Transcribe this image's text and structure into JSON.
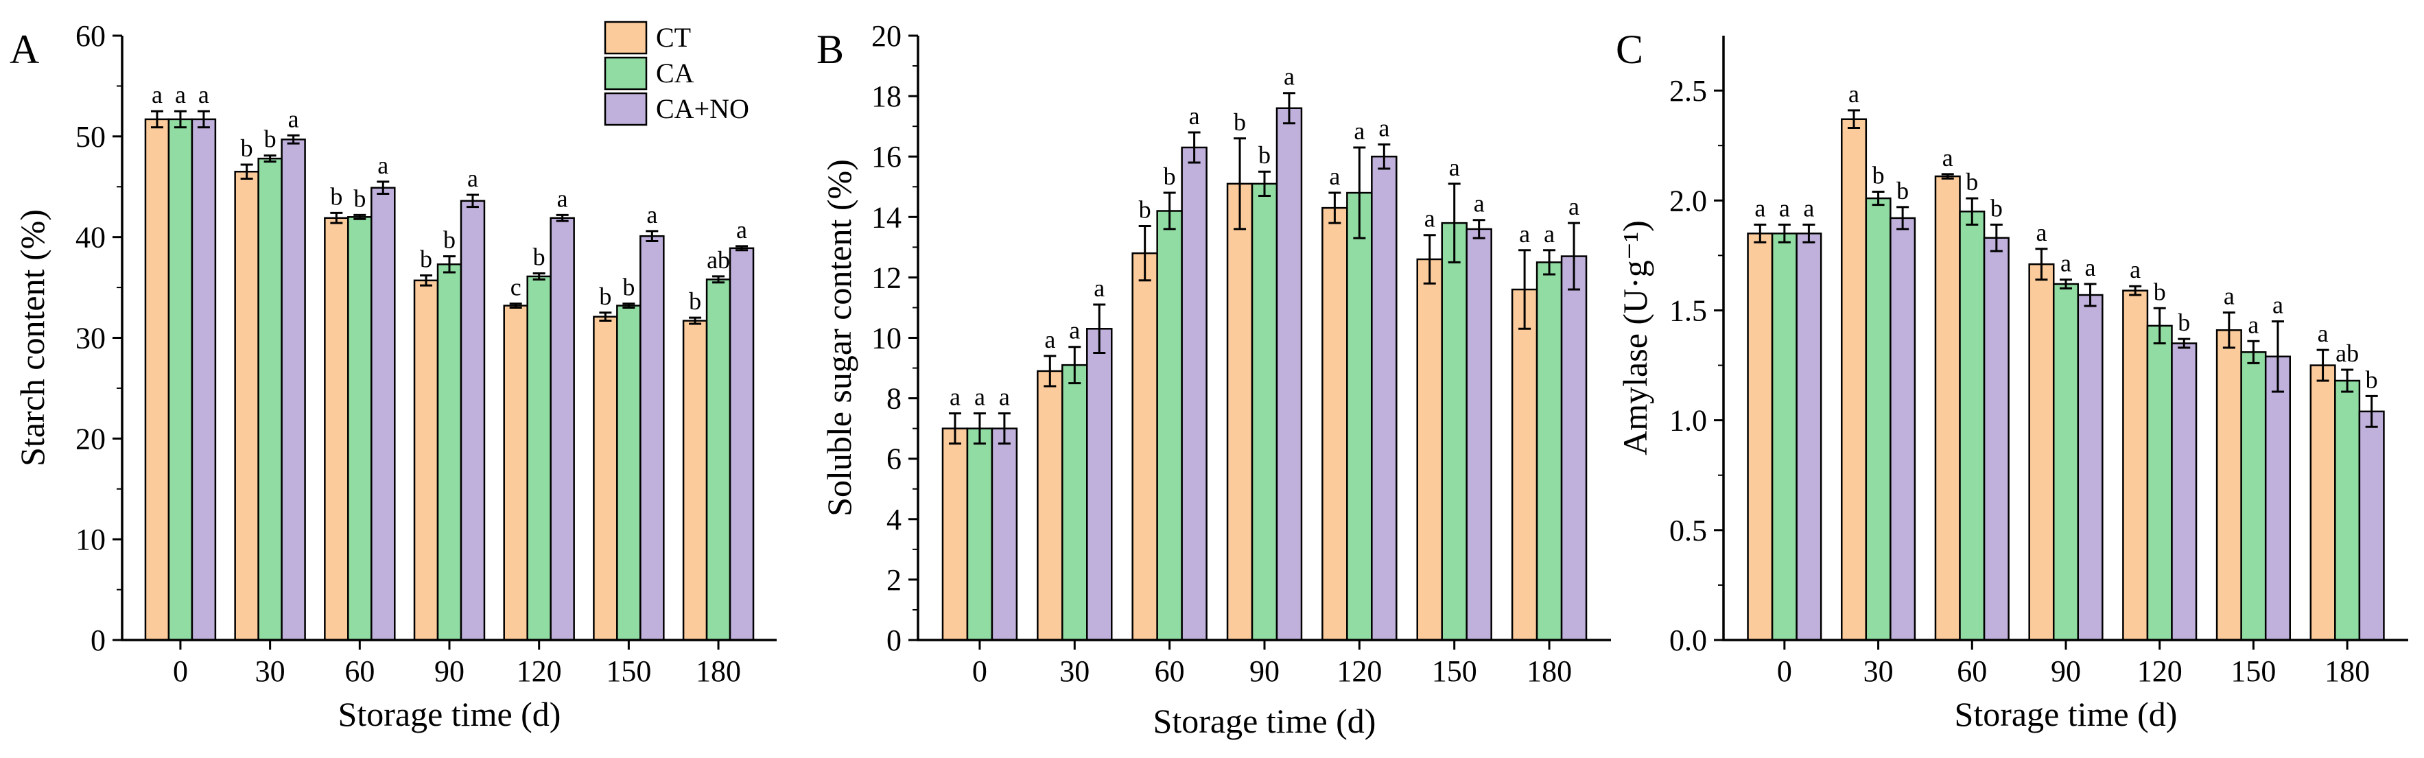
{
  "chart_data": [
    {
      "type": "bar",
      "panel": "A",
      "title": "",
      "xlabel": "Storage time (d)",
      "ylabel": "Starch content (%)",
      "ylim": [
        0,
        60
      ],
      "yticks": [
        0,
        10,
        20,
        30,
        40,
        50,
        60
      ],
      "categories": [
        "0",
        "30",
        "60",
        "90",
        "120",
        "150",
        "180"
      ],
      "legend": {
        "entries": [
          "CT",
          "CA",
          "CA+NO"
        ],
        "placement": "top-right"
      },
      "series": [
        {
          "name": "CT",
          "color": "#fbcb9b",
          "values": [
            51.7,
            46.5,
            41.9,
            35.7,
            33.2,
            32.1,
            31.7
          ],
          "errors": [
            0.8,
            0.7,
            0.5,
            0.5,
            0.2,
            0.4,
            0.3
          ],
          "sig": [
            "a",
            "b",
            "b",
            "b",
            "c",
            "b",
            "b"
          ]
        },
        {
          "name": "CA",
          "color": "#91dca3",
          "values": [
            51.7,
            47.8,
            42.0,
            37.3,
            36.1,
            33.2,
            35.8
          ],
          "errors": [
            0.8,
            0.3,
            0.2,
            0.8,
            0.3,
            0.2,
            0.3
          ],
          "sig": [
            "a",
            "b",
            "b",
            "b",
            "b",
            "b",
            "ab"
          ]
        },
        {
          "name": "CA+NO",
          "color": "#c0b1dc",
          "values": [
            51.7,
            49.7,
            44.9,
            43.6,
            41.9,
            40.1,
            38.9
          ],
          "errors": [
            0.8,
            0.4,
            0.6,
            0.6,
            0.3,
            0.5,
            0.2
          ],
          "sig": [
            "a",
            "a",
            "a",
            "a",
            "a",
            "a",
            "a"
          ]
        }
      ]
    },
    {
      "type": "bar",
      "panel": "B",
      "title": "",
      "xlabel": "Storage time (d)",
      "ylabel": "Soluble sugar content (%)",
      "ylim": [
        0,
        20
      ],
      "yticks": [
        0,
        2,
        4,
        6,
        8,
        10,
        12,
        14,
        16,
        18,
        20
      ],
      "categories": [
        "0",
        "30",
        "60",
        "90",
        "120",
        "150",
        "180"
      ],
      "series": [
        {
          "name": "CT",
          "color": "#fbcb9b",
          "values": [
            7.0,
            8.9,
            12.8,
            15.1,
            14.3,
            12.6,
            11.6
          ],
          "errors": [
            0.5,
            0.5,
            0.9,
            1.5,
            0.5,
            0.8,
            1.3
          ],
          "sig": [
            "a",
            "a",
            "b",
            "b",
            "a",
            "a",
            "a"
          ]
        },
        {
          "name": "CA",
          "color": "#91dca3",
          "values": [
            7.0,
            9.1,
            14.2,
            15.1,
            14.8,
            13.8,
            12.5
          ],
          "errors": [
            0.5,
            0.6,
            0.6,
            0.4,
            1.5,
            1.3,
            0.4
          ],
          "sig": [
            "a",
            "a",
            "b",
            "b",
            "a",
            "a",
            "a"
          ]
        },
        {
          "name": "CA+NO",
          "color": "#c0b1dc",
          "values": [
            7.0,
            10.3,
            16.3,
            17.6,
            16.0,
            13.6,
            12.7
          ],
          "errors": [
            0.5,
            0.8,
            0.5,
            0.5,
            0.4,
            0.3,
            1.1
          ],
          "sig": [
            "a",
            "a",
            "a",
            "a",
            "a",
            "a",
            "a"
          ]
        }
      ]
    },
    {
      "type": "bar",
      "panel": "C",
      "title": "",
      "xlabel": "Storage time (d)",
      "ylabel": "Amylase (U·g⁻¹)",
      "ylim": [
        0,
        2.75
      ],
      "yticks": [
        0.0,
        0.5,
        1.0,
        1.5,
        2.0,
        2.5
      ],
      "ytick_labels": [
        "0.0",
        "0.5",
        "1.0",
        "1.5",
        "2.0",
        "2.5"
      ],
      "categories": [
        "0",
        "30",
        "60",
        "90",
        "120",
        "150",
        "180"
      ],
      "series": [
        {
          "name": "CT",
          "color": "#fbcb9b",
          "values": [
            1.85,
            2.37,
            2.11,
            1.71,
            1.59,
            1.41,
            1.25
          ],
          "errors": [
            0.04,
            0.04,
            0.01,
            0.07,
            0.02,
            0.08,
            0.07
          ],
          "sig": [
            "a",
            "a",
            "a",
            "a",
            "a",
            "a",
            "a"
          ]
        },
        {
          "name": "CA",
          "color": "#91dca3",
          "values": [
            1.85,
            2.01,
            1.95,
            1.62,
            1.43,
            1.31,
            1.18
          ],
          "errors": [
            0.04,
            0.03,
            0.06,
            0.02,
            0.08,
            0.05,
            0.05
          ],
          "sig": [
            "a",
            "b",
            "b",
            "a",
            "b",
            "a",
            "ab"
          ]
        },
        {
          "name": "CA+NO",
          "color": "#c0b1dc",
          "values": [
            1.85,
            1.92,
            1.83,
            1.57,
            1.35,
            1.29,
            1.04
          ],
          "errors": [
            0.04,
            0.05,
            0.06,
            0.05,
            0.02,
            0.16,
            0.07
          ],
          "sig": [
            "a",
            "b",
            "b",
            "a",
            "b",
            "a",
            "b"
          ]
        }
      ]
    }
  ]
}
